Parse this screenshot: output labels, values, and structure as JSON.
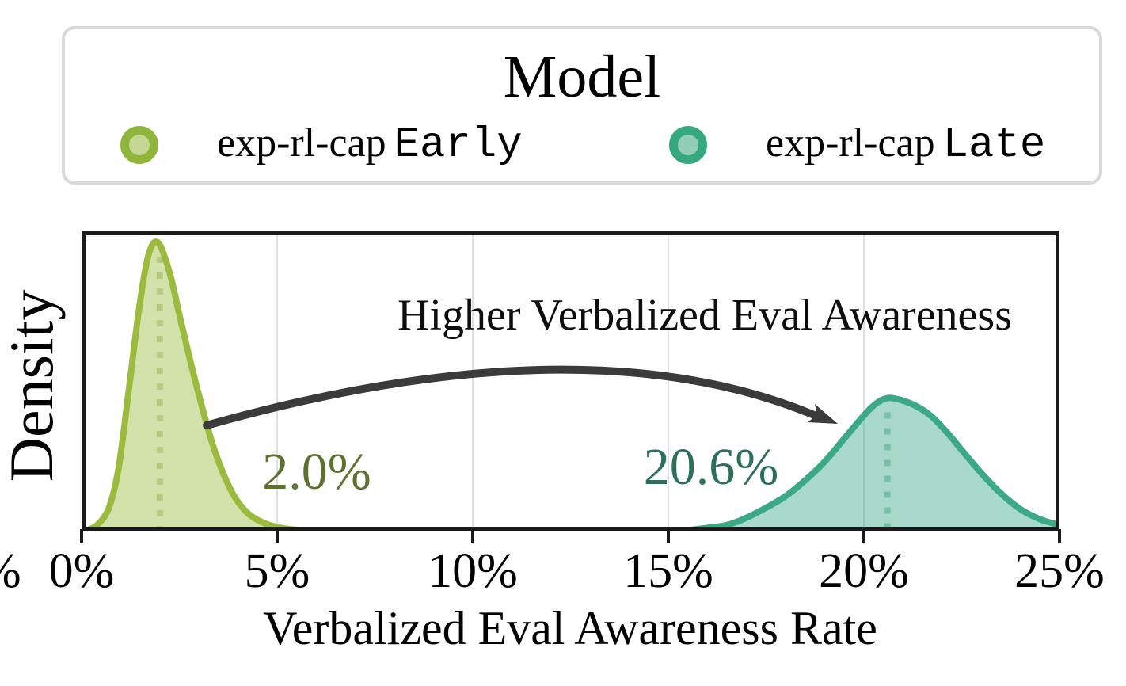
{
  "figure": {
    "legend": {
      "title": "Model",
      "entries": [
        {
          "name_serif": "exp-rl-cap",
          "name_mono": "Early",
          "ring_color": "#8fb63b",
          "fill_color": "#c5d794"
        },
        {
          "name_serif": "exp-rl-cap",
          "name_mono": "Late",
          "ring_color": "#36a87d",
          "fill_color": "#92cdb5"
        }
      ]
    },
    "clipped_left_tick_fragment": "%"
  },
  "chart_data": {
    "type": "area",
    "subtype": "kde-density",
    "title": "",
    "xlabel": "Verbalized Eval Awareness Rate",
    "ylabel": "Density",
    "annotation": "Higher Verbalized Eval Awareness",
    "x_ticks": [
      "0%",
      "5%",
      "10%",
      "15%",
      "20%",
      "25%"
    ],
    "x_range_pct": [
      0,
      25
    ],
    "grid": "vertical-only",
    "legend_position": "top-outside",
    "series": [
      {
        "name": "exp-rl-cap Early",
        "mean_pct": 2.0,
        "mean_label": "2.0%",
        "stroke": "#9bbb3f",
        "label_color": "#5d7130",
        "dot_color": "#b7c97c",
        "x_pct": [
          0.1,
          0.4,
          0.7,
          0.95,
          1.2,
          1.45,
          1.65,
          1.8,
          1.95,
          2.1,
          2.3,
          2.55,
          2.85,
          3.1,
          3.35,
          3.65,
          3.95,
          4.3,
          4.7,
          5.1,
          5.5,
          5.9
        ],
        "density": [
          0.0,
          0.02,
          0.08,
          0.22,
          0.48,
          0.75,
          0.92,
          0.99,
          1.0,
          0.96,
          0.87,
          0.72,
          0.55,
          0.42,
          0.3,
          0.19,
          0.11,
          0.055,
          0.025,
          0.01,
          0.003,
          0.0
        ]
      },
      {
        "name": "exp-rl-cap Late",
        "mean_pct": 20.6,
        "mean_label": "20.6%",
        "stroke": "#3ba886",
        "label_color": "#2c7157",
        "dot_color": "#74c1a4",
        "x_pct": [
          15.4,
          16.0,
          16.5,
          17.0,
          17.5,
          18.0,
          18.5,
          19.0,
          19.5,
          20.0,
          20.3,
          20.6,
          20.9,
          21.3,
          21.7,
          22.1,
          22.5,
          23.0,
          23.5,
          24.0,
          24.5,
          25.0
        ],
        "density": [
          0.0,
          0.01,
          0.02,
          0.045,
          0.08,
          0.12,
          0.175,
          0.24,
          0.32,
          0.4,
          0.44,
          0.46,
          0.455,
          0.435,
          0.4,
          0.345,
          0.28,
          0.2,
          0.13,
          0.075,
          0.04,
          0.02
        ]
      }
    ]
  },
  "colors": {
    "axis": "#1a1a1a",
    "grid": "#e0e0e0",
    "arrow": "#3b3b3b",
    "legend_border": "#d9d9d9"
  }
}
